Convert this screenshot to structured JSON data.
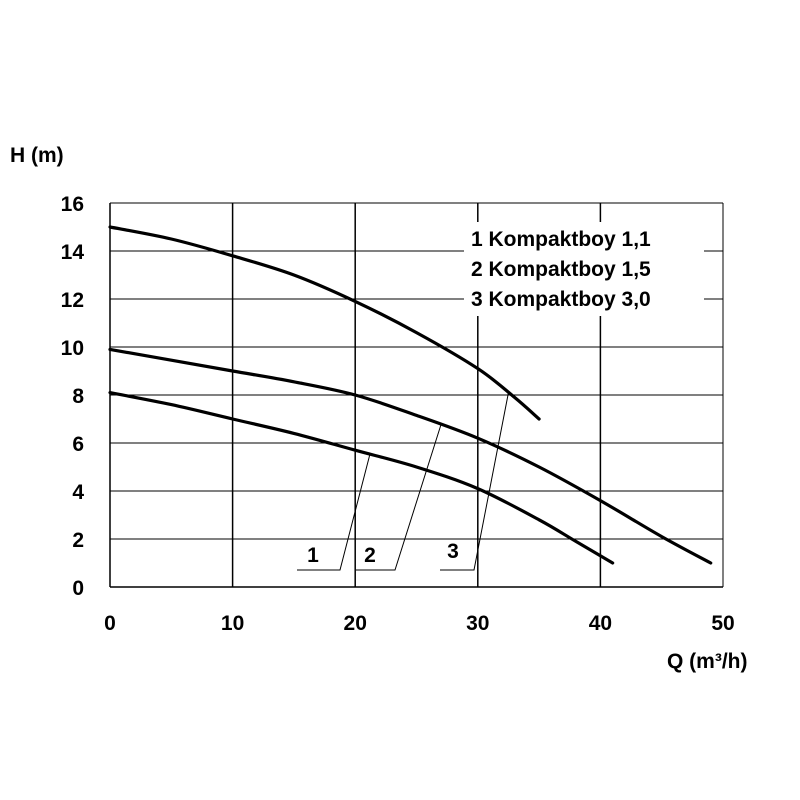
{
  "chart_data": {
    "type": "line",
    "xlabel": "Q (m³/h)",
    "ylabel": "H (m)",
    "xlim": [
      0,
      50
    ],
    "ylim": [
      0,
      16
    ],
    "xticks": [
      0,
      10,
      20,
      30,
      40,
      50
    ],
    "yticks": [
      0,
      2,
      4,
      6,
      8,
      10,
      12,
      14,
      16
    ],
    "grid": true,
    "legend_position": "top-right",
    "legend": [
      "1 Kompaktboy 1,1",
      "2 Kompaktboy 1,5",
      "3 Kompaktboy 3,0"
    ],
    "series": [
      {
        "name": "1",
        "x": [
          0,
          5,
          10,
          15,
          20,
          25,
          30,
          35,
          38,
          41
        ],
        "y": [
          8.1,
          7.6,
          7.0,
          6.4,
          5.7,
          5.0,
          4.1,
          2.8,
          1.9,
          1.0
        ]
      },
      {
        "name": "2",
        "x": [
          0,
          5,
          10,
          15,
          20,
          25,
          30,
          35,
          40,
          45,
          49
        ],
        "y": [
          9.9,
          9.45,
          9.0,
          8.55,
          8.0,
          7.15,
          6.2,
          5.0,
          3.6,
          2.1,
          1.0
        ]
      },
      {
        "name": "3",
        "x": [
          0,
          5,
          10,
          15,
          20,
          25,
          30,
          33,
          35
        ],
        "y": [
          15.0,
          14.5,
          13.8,
          13.0,
          11.9,
          10.6,
          9.1,
          7.9,
          7.0
        ]
      }
    ]
  },
  "colors": {
    "curve": "#000000",
    "grid": "#000000",
    "background": "#ffffff"
  }
}
